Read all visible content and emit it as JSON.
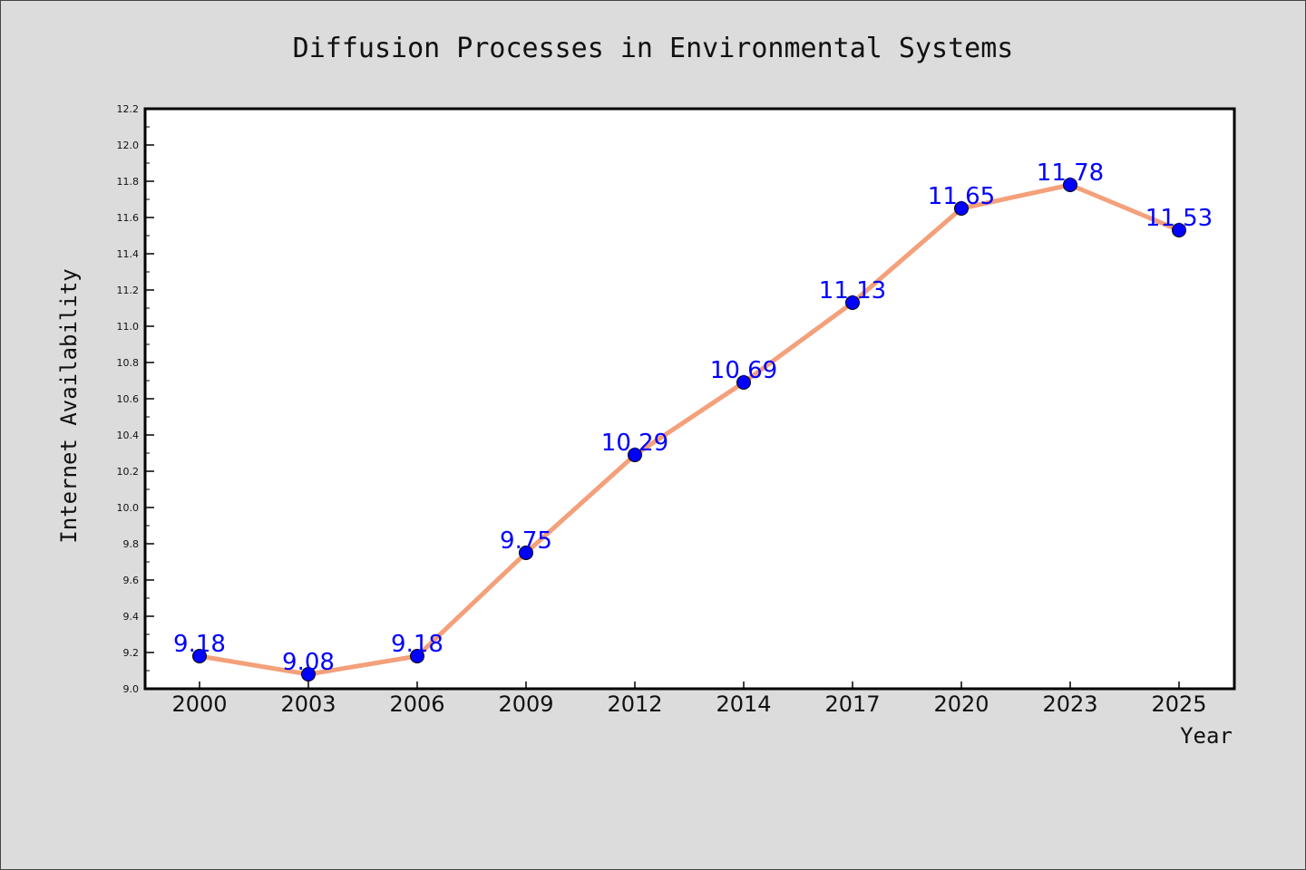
{
  "chart_data": {
    "type": "line",
    "title": "Diffusion Processes in Environmental Systems",
    "xlabel": "Year",
    "ylabel": "Internet Availability",
    "categories": [
      "2000",
      "2003",
      "2006",
      "2009",
      "2012",
      "2014",
      "2017",
      "2020",
      "2023",
      "2025"
    ],
    "series": [
      {
        "values": [
          9.18,
          9.08,
          9.18,
          9.75,
          10.29,
          10.69,
          11.13,
          11.65,
          11.78,
          11.53
        ],
        "labels": [
          "9.18",
          "9.08",
          "9.18",
          "9.75",
          "10.29",
          "10.69",
          "11.13",
          "11.65",
          "11.78",
          "11.53"
        ],
        "line_color": "#f4a07a",
        "marker_color": "#0000ff",
        "label_color": "#0000ff"
      }
    ],
    "ylim": [
      9.0,
      12.2
    ],
    "yticks": [
      "9.0",
      "9.2",
      "9.4",
      "9.6",
      "9.8",
      "10.0",
      "10.2",
      "10.4",
      "10.6",
      "10.8",
      "11.0",
      "11.2",
      "11.4",
      "11.6",
      "11.8",
      "12.0",
      "12.2"
    ],
    "grid": false,
    "legend": "none",
    "background_color": "#dcdcdc",
    "plot_background_color": "#ffffff"
  }
}
